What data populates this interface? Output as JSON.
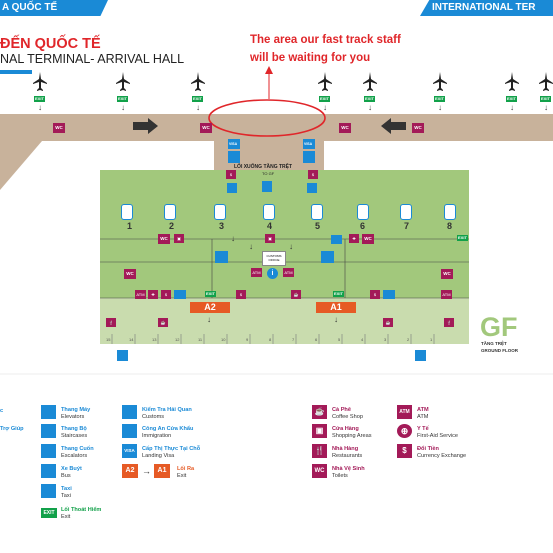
{
  "header": {
    "left_banner": "A QUỐC TẾ",
    "right_banner": "INTERNATIONAL TER"
  },
  "title": {
    "vi": "ĐẾN QUỐC TẾ",
    "en": "NAL TERMINAL- ARRIVAL HALL"
  },
  "annotation": {
    "line1": "The area our fast track staff",
    "line2": "will be waiting for you"
  },
  "labels": {
    "exit": "EXIT",
    "wc": "WC",
    "visa": "VISA",
    "atm": "ATM",
    "stairs": "LỐI XUỐNG TẦNG TRỆT",
    "to_gf": "TO GF",
    "customs_office_1": "CUSTOMS",
    "customs_office_2": "OFFICE",
    "floor_code": "GF",
    "floor_vi": "TẦNG TRỆT",
    "floor_en": "GROUND FLOOR"
  },
  "belts": [
    "1",
    "2",
    "3",
    "4",
    "5",
    "6",
    "7",
    "8"
  ],
  "gates": [
    "A2",
    "A1"
  ],
  "ticks": [
    "15",
    "14",
    "13",
    "12",
    "11",
    "10",
    "9",
    "8",
    "7",
    "6",
    "5",
    "4",
    "3",
    "2",
    "1"
  ],
  "legend": {
    "col0": [
      {
        "vi": "c",
        "en": ""
      },
      {
        "vi": "Trợ Giúp",
        "en": ""
      }
    ],
    "col1": [
      {
        "vi": "Thang Máy",
        "en": "Elevators",
        "icon": "elevator-icon",
        "color": "#1a8ad6"
      },
      {
        "vi": "Thang Bộ",
        "en": "Staircases",
        "icon": "staircase-icon",
        "color": "#1a8ad6"
      },
      {
        "vi": "Thang Cuốn",
        "en": "Escalators",
        "icon": "escalator-icon",
        "color": "#1a8ad6"
      },
      {
        "vi": "Xe Buýt",
        "en": "Bus",
        "icon": "bus-icon",
        "color": "#1a8ad6"
      },
      {
        "vi": "Taxi",
        "en": "Taxi",
        "icon": "taxi-icon",
        "color": "#1a8ad6"
      },
      {
        "vi": "Lối Thoát Hiểm",
        "en": "Exit",
        "icon": "emergency-exit-icon",
        "color": "#12a14a"
      }
    ],
    "col2": [
      {
        "vi": "Kiểm Tra Hải Quan",
        "en": "Customs",
        "icon": "customs-icon",
        "color": "#1a8ad6"
      },
      {
        "vi": "Công An Cửa Khẩu",
        "en": "Immigration",
        "icon": "immigration-icon",
        "color": "#1a8ad6"
      },
      {
        "vi": "Cấp Thị Thực Tại Chỗ",
        "en": "Landing Visa",
        "icon": "visa-icon",
        "color": "#1a8ad6"
      },
      {
        "vi": "Lối Ra",
        "en": "Exit",
        "icon": "gate-exit-icon",
        "color": "#e65a25"
      }
    ],
    "col3": [
      {
        "vi": "Cà Phê",
        "en": "Coffee Shop",
        "icon": "coffee-icon",
        "color": "#a31a58"
      },
      {
        "vi": "Cửa Hàng",
        "en": "Shopping Areas",
        "icon": "gift-icon",
        "color": "#a31a58"
      },
      {
        "vi": "Nhà Hàng",
        "en": "Restaurants",
        "icon": "restaurant-icon",
        "color": "#a31a58"
      },
      {
        "vi": "Nhà Vệ Sinh",
        "en": "Toilets",
        "icon": "toilet-icon",
        "color": "#a31a58"
      }
    ],
    "col4": [
      {
        "vi": "ATM",
        "en": "ATM",
        "icon": "atm-icon",
        "color": "#a31a58"
      },
      {
        "vi": "Y Tế",
        "en": "First-Aid Service",
        "icon": "first-aid-icon",
        "color": "#a31a58"
      },
      {
        "vi": "Đổi Tiền",
        "en": "Currency Exchange",
        "icon": "currency-exchange-icon",
        "color": "#a31a58"
      }
    ]
  },
  "colors": {
    "accent": "#1a8ad6",
    "red": "#e0262a",
    "maroon": "#a31a58",
    "exit_green": "#12a14a",
    "gate_orange": "#e65a25",
    "hall_green": "#a2c87c",
    "corridor": "#c8b29b"
  }
}
